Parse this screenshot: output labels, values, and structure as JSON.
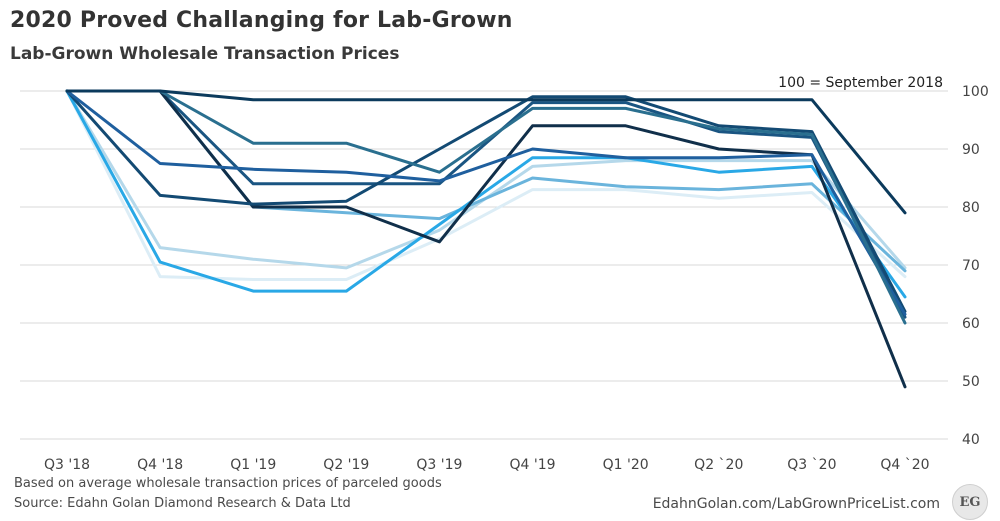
{
  "header": {
    "title": "2020 Proved Challanging for Lab-Grown",
    "subtitle": "Lab-Grown Wholesale Transaction  Prices"
  },
  "footer": {
    "note": "Based on average wholesale transaction prices of parceled goods",
    "source": "Source: Edahn Golan Diamond Research & Data Ltd",
    "website": "EdahnGolan.com/LabGrownPriceList.com",
    "logo_text": "EG"
  },
  "chart_data": {
    "type": "line",
    "annotation": "100 = September 2018",
    "categories": [
      "Q3 '18",
      "Q4 '18",
      "Q1 '19",
      "Q2 '19",
      "Q3 '19",
      "Q4 '19",
      "Q1 '20",
      "Q2 `20",
      "Q3 `20",
      "Q4 `20"
    ],
    "yticks": [
      40,
      50,
      60,
      70,
      80,
      90,
      100
    ],
    "ylim": [
      40,
      100
    ],
    "y_axis_side": "right",
    "grid": true,
    "legend": "none",
    "series": [
      {
        "color": "#0b3a5c",
        "values": [
          100,
          100,
          98.5,
          98.5,
          98.5,
          98.5,
          98.5,
          98.5,
          98.5,
          79
        ]
      },
      {
        "color": "#2a6f8f",
        "values": [
          100,
          100,
          91,
          91,
          86,
          97,
          97,
          93.5,
          92.5,
          60
        ]
      },
      {
        "color": "#1f5f9e",
        "values": [
          100,
          87.5,
          86.5,
          86,
          84.5,
          90,
          88.5,
          88.5,
          89,
          61.5
        ]
      },
      {
        "color": "#134a73",
        "values": [
          100,
          82,
          80.5,
          81,
          90,
          99,
          99,
          94,
          93,
          62
        ]
      },
      {
        "color": "#102f4a",
        "values": [
          100,
          100,
          80,
          80,
          74,
          94,
          94,
          90,
          89,
          49
        ]
      },
      {
        "color": "#1a5582",
        "values": [
          100,
          100,
          84,
          84,
          84,
          98,
          98,
          93,
          92,
          61
        ]
      },
      {
        "color": "#29a8e6",
        "values": [
          100,
          70.5,
          65.5,
          65.5,
          77,
          88.5,
          88.5,
          86,
          87,
          64.5
        ]
      },
      {
        "color": "#6ab4dc",
        "values": [
          100,
          100,
          80,
          79,
          78,
          85,
          83.5,
          83,
          84,
          69
        ]
      },
      {
        "color": "#b5d8ea",
        "values": [
          100,
          73,
          71,
          69.5,
          76,
          87,
          88,
          88,
          88,
          69.5
        ]
      },
      {
        "color": "#dcedf6",
        "values": [
          100,
          68,
          67.5,
          67.5,
          74.5,
          83,
          83,
          81.5,
          82.5,
          68
        ]
      }
    ]
  }
}
